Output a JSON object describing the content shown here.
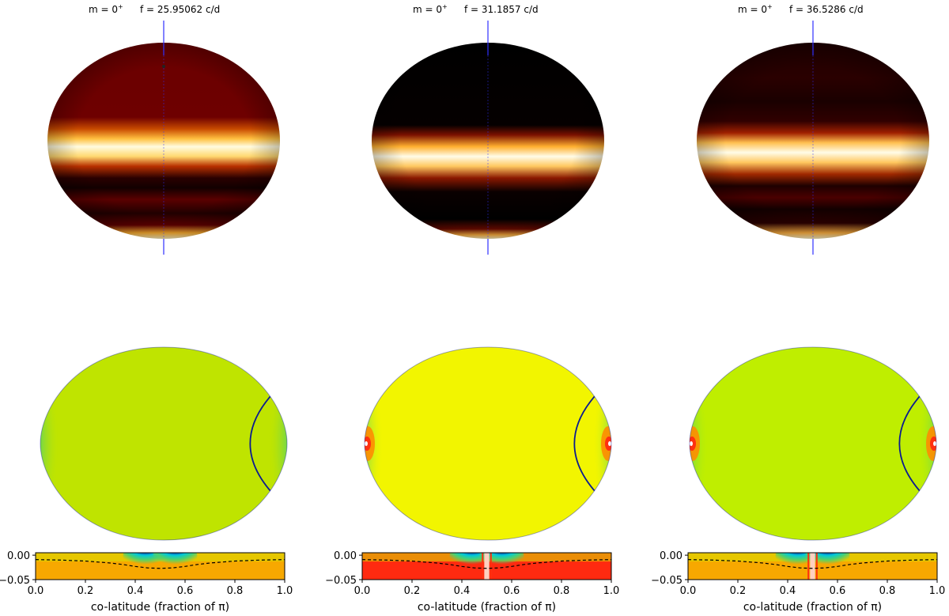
{
  "chart_data": [
    {
      "type": "heatmap",
      "panel": "mode-1",
      "m_label": "m = 0",
      "m_sup": "+",
      "freq_label": "f = 25.95062 c/d",
      "surface_bands": [
        {
          "pos": 0.0,
          "color": "#6a0000"
        },
        {
          "pos": 0.38,
          "color": "#6e0000"
        },
        {
          "pos": 0.44,
          "color": "#c84a00"
        },
        {
          "pos": 0.49,
          "color": "#ffc040"
        },
        {
          "pos": 0.53,
          "color": "#fffbe0"
        },
        {
          "pos": 0.58,
          "color": "#ffd870"
        },
        {
          "pos": 0.63,
          "color": "#b83000"
        },
        {
          "pos": 0.69,
          "color": "#2a0000"
        },
        {
          "pos": 0.74,
          "color": "#120000"
        },
        {
          "pos": 0.8,
          "color": "#5a0000"
        },
        {
          "pos": 0.87,
          "color": "#200000"
        },
        {
          "pos": 0.93,
          "color": "#5e0000"
        },
        {
          "pos": 0.97,
          "color": "#ffb030"
        },
        {
          "pos": 1.0,
          "color": "#fff2c0"
        }
      ],
      "meridional_background": "#bfe400",
      "strip_background": "#f7a800",
      "strip": {
        "xlabel": "co-latitude (fraction of π)",
        "x_ticks": [
          "0.0",
          "0.2",
          "0.4",
          "0.6",
          "0.8",
          "1.0"
        ],
        "y_ticks": [
          "0.00",
          "−0.05"
        ],
        "xlim": [
          0.0,
          1.0
        ],
        "ylim": [
          -0.05,
          0.005
        ],
        "dashed_profile": {
          "x": [
            0.0,
            0.1,
            0.2,
            0.3,
            0.35,
            0.4,
            0.45,
            0.5,
            0.55,
            0.6,
            0.65,
            0.7,
            0.8,
            0.9,
            1.0
          ],
          "y": [
            -0.009,
            -0.01,
            -0.012,
            -0.016,
            -0.019,
            -0.023,
            -0.026,
            -0.027,
            -0.026,
            -0.023,
            -0.019,
            -0.016,
            -0.012,
            -0.01,
            -0.009
          ]
        }
      }
    },
    {
      "type": "heatmap",
      "panel": "mode-2",
      "m_label": "m = 0",
      "m_sup": "+",
      "freq_label": "f = 31.1857 c/d",
      "surface_bands": [
        {
          "pos": 0.0,
          "color": "#000000"
        },
        {
          "pos": 0.42,
          "color": "#050000"
        },
        {
          "pos": 0.47,
          "color": "#7a1000"
        },
        {
          "pos": 0.53,
          "color": "#ffb030"
        },
        {
          "pos": 0.58,
          "color": "#fffce8"
        },
        {
          "pos": 0.63,
          "color": "#ffc860"
        },
        {
          "pos": 0.69,
          "color": "#8a1800"
        },
        {
          "pos": 0.76,
          "color": "#0a0000"
        },
        {
          "pos": 0.9,
          "color": "#000000"
        },
        {
          "pos": 0.95,
          "color": "#6a0a00"
        },
        {
          "pos": 0.98,
          "color": "#ffb040"
        },
        {
          "pos": 1.0,
          "color": "#fff2c0"
        }
      ],
      "meridional_background": "#f2f500",
      "strip_background": "#ff2a10",
      "strip": {
        "xlabel": "co-latitude (fraction of π)",
        "x_ticks": [
          "0.0",
          "0.2",
          "0.4",
          "0.6",
          "0.8",
          "1.0"
        ],
        "y_ticks": [
          "0.00",
          "−0.05"
        ],
        "xlim": [
          0.0,
          1.0
        ],
        "ylim": [
          -0.05,
          0.005
        ],
        "dashed_profile": {
          "x": [
            0.0,
            0.1,
            0.2,
            0.3,
            0.35,
            0.4,
            0.45,
            0.5,
            0.55,
            0.6,
            0.65,
            0.7,
            0.8,
            0.9,
            1.0
          ],
          "y": [
            -0.009,
            -0.01,
            -0.012,
            -0.016,
            -0.019,
            -0.023,
            -0.026,
            -0.027,
            -0.026,
            -0.023,
            -0.019,
            -0.016,
            -0.012,
            -0.01,
            -0.009
          ]
        }
      }
    },
    {
      "type": "heatmap",
      "panel": "mode-3",
      "m_label": "m = 0",
      "m_sup": "+",
      "freq_label": "f = 36.5286 c/d",
      "surface_bands": [
        {
          "pos": 0.0,
          "color": "#1e0000"
        },
        {
          "pos": 0.18,
          "color": "#2a0000"
        },
        {
          "pos": 0.3,
          "color": "#1a0000"
        },
        {
          "pos": 0.4,
          "color": "#300000"
        },
        {
          "pos": 0.46,
          "color": "#a02000"
        },
        {
          "pos": 0.51,
          "color": "#ffc050"
        },
        {
          "pos": 0.56,
          "color": "#fffce8"
        },
        {
          "pos": 0.61,
          "color": "#ffc860"
        },
        {
          "pos": 0.67,
          "color": "#a02800"
        },
        {
          "pos": 0.73,
          "color": "#1e0000"
        },
        {
          "pos": 0.79,
          "color": "#4a0000"
        },
        {
          "pos": 0.85,
          "color": "#120000"
        },
        {
          "pos": 0.92,
          "color": "#2a0000"
        },
        {
          "pos": 0.97,
          "color": "#ffb040"
        },
        {
          "pos": 1.0,
          "color": "#fff4c8"
        }
      ],
      "meridional_background": "#bfee00",
      "strip_background": "#f7a800",
      "strip": {
        "xlabel": "co-latitude (fraction of π)",
        "x_ticks": [
          "0.0",
          "0.2",
          "0.4",
          "0.6",
          "0.8",
          "1.0"
        ],
        "y_ticks": [
          "0.00",
          "−0.05"
        ],
        "xlim": [
          0.0,
          1.0
        ],
        "ylim": [
          -0.05,
          0.005
        ],
        "dashed_profile": {
          "x": [
            0.0,
            0.1,
            0.2,
            0.3,
            0.35,
            0.4,
            0.45,
            0.5,
            0.55,
            0.6,
            0.65,
            0.7,
            0.8,
            0.9,
            1.0
          ],
          "y": [
            -0.009,
            -0.01,
            -0.012,
            -0.016,
            -0.019,
            -0.023,
            -0.026,
            -0.027,
            -0.026,
            -0.023,
            -0.019,
            -0.016,
            -0.012,
            -0.01,
            -0.009
          ]
        }
      }
    }
  ],
  "colors": {
    "rotation_axis": "#3030ff",
    "boundary_curve": "#0a1a90",
    "edge_blue": "#0a1ab0",
    "edge_cyan": "#00c8d8",
    "edge_green": "#4cd070",
    "edge_red": "#ff3010",
    "edge_orange": "#ff8c00"
  }
}
